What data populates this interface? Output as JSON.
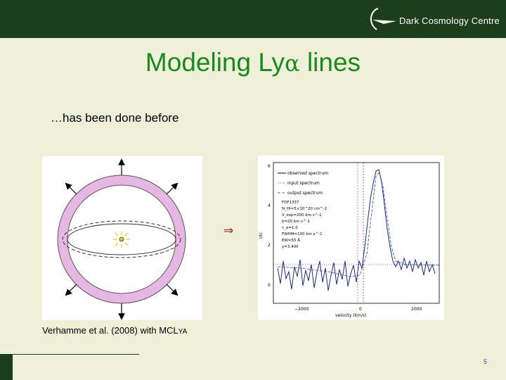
{
  "header": {
    "logo_text": "Dark Cosmology Centre"
  },
  "title": {
    "main": "Modeling Ly",
    "greek": "α",
    "end": " lines"
  },
  "bullet": "…has been done before",
  "implies_symbol": "⇒",
  "spectrum_figure": {
    "legend": [
      "observed spectrum",
      "input spectrum",
      "output spectrum"
    ],
    "annotation": [
      "FDF1337",
      "N_HI=5×10^20 cm^-2",
      "V_exp=200 km s^-1",
      "b=20 km s^-1",
      "τ_a=1.0",
      "FWHM=100 km s^-1",
      "EW=55 Å",
      "y=3.400"
    ],
    "y_label": "I/Ic",
    "y_ticks": [
      "6",
      "4",
      "2",
      "0"
    ],
    "x_ticks": [
      "−2000",
      "0",
      "2000"
    ],
    "x_label": "velocity (km/s)"
  },
  "caption": {
    "text": "Verhamme et al. (2008) with MCL",
    "small": "YA"
  },
  "page_number": "5",
  "colors": {
    "header": "#1d3e1b",
    "title": "#1a8a20",
    "background": "#eef0d8",
    "shell": "#e7b7e4"
  }
}
